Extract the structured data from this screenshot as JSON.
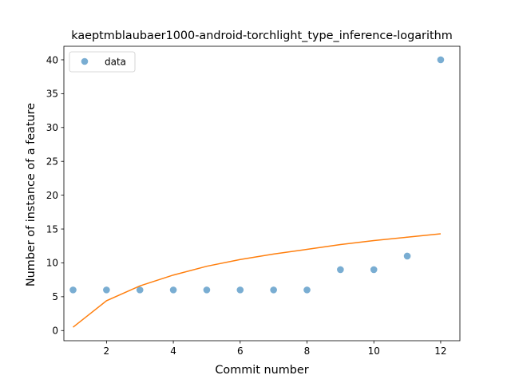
{
  "chart_data": {
    "type": "scatter",
    "title": "kaeptmblaubaer1000-android-torchlight_type_inference-logarithm",
    "xlabel": "Commit number",
    "ylabel": "Number of instance of a feature",
    "xlim": [
      0.725,
      12.575
    ],
    "ylim": [
      -1.5,
      42
    ],
    "xticks": [
      2,
      4,
      6,
      8,
      10,
      12
    ],
    "yticks": [
      0,
      5,
      10,
      15,
      20,
      25,
      30,
      35,
      40
    ],
    "legend_position": "upper-left",
    "series": [
      {
        "name": "data",
        "kind": "points",
        "color": "#1f77b4",
        "x": [
          1,
          2,
          3,
          4,
          5,
          6,
          7,
          8,
          9,
          10,
          11,
          12
        ],
        "y": [
          6,
          6,
          6,
          6,
          6,
          6,
          6,
          6,
          9,
          9,
          11,
          40
        ]
      },
      {
        "kind": "line",
        "color": "#ff7f0e",
        "x": [
          1,
          2,
          3,
          4,
          5,
          6,
          7,
          8,
          9,
          10,
          11,
          12
        ],
        "y": [
          0.5,
          4.4,
          6.6,
          8.2,
          9.5,
          10.5,
          11.3,
          12.0,
          12.7,
          13.3,
          13.8,
          14.3
        ]
      }
    ]
  }
}
